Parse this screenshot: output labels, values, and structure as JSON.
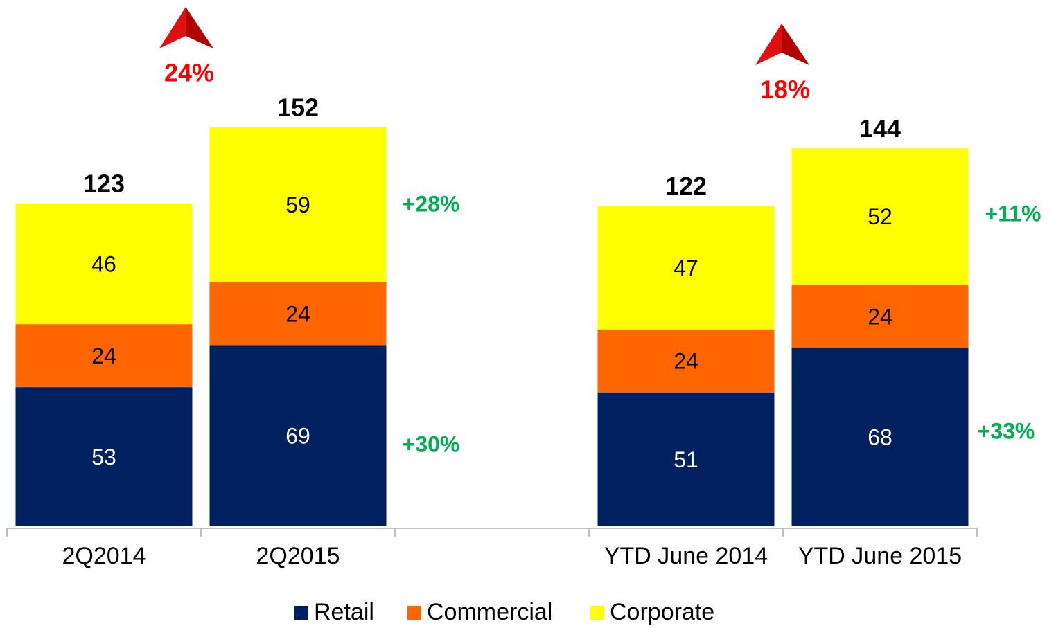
{
  "chart_data": {
    "type": "bar",
    "stacked": true,
    "categories": [
      "2Q2014",
      "2Q2015",
      null,
      "YTD June 2014",
      "YTD June 2015"
    ],
    "series": [
      {
        "name": "Retail",
        "color": "#002060",
        "values": [
          53,
          69,
          null,
          51,
          68
        ]
      },
      {
        "name": "Commercial",
        "color": "#ff6600",
        "values": [
          24,
          24,
          null,
          24,
          24
        ]
      },
      {
        "name": "Corporate",
        "color": "#ffff00",
        "values": [
          46,
          59,
          null,
          47,
          52
        ]
      }
    ],
    "totals": [
      123,
      152,
      null,
      122,
      144
    ],
    "growth": [
      "24%",
      "18%"
    ],
    "changes": [
      "+28%",
      "+30%",
      "+11%",
      "+33%"
    ],
    "legend": "bottom"
  }
}
